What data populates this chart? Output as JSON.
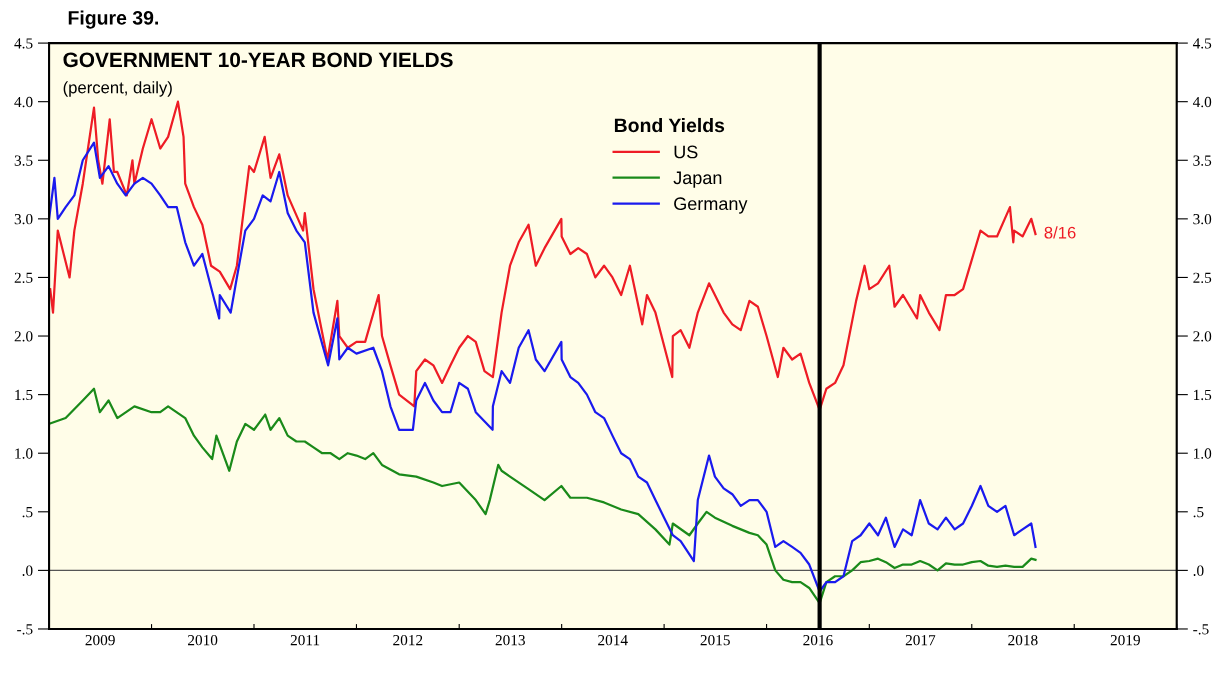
{
  "chart_data": {
    "type": "line",
    "title": "GOVERNMENT 10-YEAR BOND YIELDS",
    "subtitle": "(percent, daily)",
    "legend_title": "Bond Yields",
    "annotations": [
      "Figure 39.",
      {
        "text": "8/16",
        "x": "2018-08-16",
        "y": 2.87
      }
    ],
    "series": [
      {
        "name": "US",
        "color": "#ee1c25",
        "x": [
          "2009-01-05",
          "2009-01-15",
          "2009-02",
          "2009-03-15",
          "2009-04",
          "2009-05",
          "2009-06-10",
          "2009-06-25",
          "2009-07-10",
          "2009-08-05",
          "2009-08-20",
          "2009-09",
          "2009-10-05",
          "2009-10-25",
          "2009-11",
          "2009-12",
          "2010-01",
          "2010-02",
          "2010-03",
          "2010-04-05",
          "2010-04-25",
          "2010-05",
          "2010-06",
          "2010-07",
          "2010-08",
          "2010-09",
          "2010-10-08",
          "2010-11",
          "2010-12-15",
          "2011-01",
          "2011-02-08",
          "2011-03",
          "2011-04",
          "2011-05",
          "2011-06-25",
          "2011-07",
          "2011-08",
          "2011-09-20",
          "2011-10-25",
          "2011-11",
          "2011-12",
          "2012-01",
          "2012-02",
          "2012-03-20",
          "2012-04",
          "2012-05",
          "2012-06",
          "2012-07-25",
          "2012-08",
          "2012-09",
          "2012-10",
          "2012-11",
          "2012-12",
          "2013-01",
          "2013-02",
          "2013-03",
          "2013-04",
          "2013-05-01",
          "2013-06",
          "2013-07",
          "2013-08",
          "2013-09-05",
          "2013-10",
          "2013-11",
          "2013-12-31",
          "2014-01",
          "2014-02",
          "2014-03",
          "2014-04",
          "2014-05",
          "2014-06",
          "2014-07",
          "2014-08",
          "2014-09",
          "2014-10-15",
          "2014-11",
          "2014-12",
          "2015-01-30",
          "2015-02",
          "2015-03",
          "2015-04",
          "2015-05",
          "2015-06-10",
          "2015-07",
          "2015-08",
          "2015-09",
          "2015-10",
          "2015-11",
          "2015-12",
          "2016-01",
          "2016-02-10",
          "2016-03",
          "2016-04",
          "2016-05",
          "2016-06",
          "2016-07-08",
          "2016-08",
          "2016-09",
          "2016-10",
          "2016-11-15",
          "2016-12-15",
          "2017-01",
          "2017-02",
          "2017-03-13",
          "2017-04",
          "2017-05",
          "2017-06-20",
          "2017-07",
          "2017-08",
          "2017-09-08",
          "2017-10",
          "2017-11",
          "2017-12",
          "2018-01",
          "2018-02",
          "2018-03",
          "2018-04",
          "2018-05-17",
          "2018-05-29",
          "2018-06",
          "2018-07",
          "2018-08-01",
          "2018-08-16"
        ],
        "values": [
          2.4,
          2.2,
          2.9,
          2.5,
          2.9,
          3.3,
          3.95,
          3.5,
          3.3,
          3.85,
          3.4,
          3.4,
          3.2,
          3.5,
          3.3,
          3.6,
          3.85,
          3.6,
          3.7,
          4.0,
          3.7,
          3.3,
          3.1,
          2.95,
          2.6,
          2.55,
          2.4,
          2.6,
          3.45,
          3.4,
          3.7,
          3.35,
          3.55,
          3.2,
          2.9,
          3.05,
          2.4,
          1.8,
          2.3,
          2.0,
          1.9,
          1.95,
          1.95,
          2.35,
          2.0,
          1.75,
          1.5,
          1.4,
          1.7,
          1.8,
          1.75,
          1.6,
          1.75,
          1.9,
          2.0,
          1.95,
          1.7,
          1.65,
          2.2,
          2.6,
          2.8,
          2.95,
          2.6,
          2.75,
          3.0,
          2.85,
          2.7,
          2.75,
          2.7,
          2.5,
          2.6,
          2.5,
          2.35,
          2.6,
          2.1,
          2.35,
          2.2,
          1.65,
          2.0,
          2.05,
          1.9,
          2.2,
          2.45,
          2.35,
          2.2,
          2.1,
          2.05,
          2.3,
          2.25,
          2.0,
          1.65,
          1.9,
          1.8,
          1.85,
          1.6,
          1.37,
          1.55,
          1.6,
          1.75,
          2.3,
          2.6,
          2.4,
          2.45,
          2.6,
          2.25,
          2.35,
          2.15,
          2.35,
          2.2,
          2.05,
          2.35,
          2.35,
          2.4,
          2.65,
          2.9,
          2.85,
          2.85,
          3.1,
          2.8,
          2.9,
          2.85,
          3.0,
          2.87
        ]
      },
      {
        "name": "Japan",
        "color": "#1a8a1a",
        "x": [
          "2009-01",
          "2009-03",
          "2009-05",
          "2009-06-10",
          "2009-07",
          "2009-08",
          "2009-09",
          "2009-11",
          "2010-01",
          "2010-02",
          "2010-03",
          "2010-05",
          "2010-06",
          "2010-07",
          "2010-08-05",
          "2010-08-20",
          "2010-10-05",
          "2010-11",
          "2010-12",
          "2011-01",
          "2011-02-10",
          "2011-03",
          "2011-04",
          "2011-05",
          "2011-06",
          "2011-07",
          "2011-08",
          "2011-09",
          "2011-10",
          "2011-11",
          "2011-12",
          "2012-01",
          "2012-02",
          "2012-03",
          "2012-04",
          "2012-06",
          "2012-08",
          "2012-10",
          "2012-11",
          "2013-01",
          "2013-03",
          "2013-04-05",
          "2013-04-20",
          "2013-05-20",
          "2013-06",
          "2013-07",
          "2013-09",
          "2013-11",
          "2013-12-31",
          "2014-02",
          "2014-04",
          "2014-06",
          "2014-08",
          "2014-10",
          "2014-12",
          "2015-01-20",
          "2015-02",
          "2015-04",
          "2015-05",
          "2015-06",
          "2015-07",
          "2015-09",
          "2015-11",
          "2015-12",
          "2016-01",
          "2016-02",
          "2016-03",
          "2016-04",
          "2016-05",
          "2016-06",
          "2016-07-08",
          "2016-08",
          "2016-09",
          "2016-10",
          "2016-11",
          "2016-12",
          "2017-01",
          "2017-02",
          "2017-03",
          "2017-04",
          "2017-05",
          "2017-06",
          "2017-07",
          "2017-08",
          "2017-09",
          "2017-10",
          "2017-11",
          "2017-12",
          "2018-01",
          "2018-02",
          "2018-03",
          "2018-04",
          "2018-05",
          "2018-06",
          "2018-07",
          "2018-08-01",
          "2018-08-16"
        ],
        "values": [
          1.25,
          1.3,
          1.45,
          1.55,
          1.35,
          1.45,
          1.3,
          1.4,
          1.35,
          1.35,
          1.4,
          1.3,
          1.15,
          1.05,
          0.95,
          1.15,
          0.85,
          1.1,
          1.25,
          1.2,
          1.33,
          1.2,
          1.3,
          1.15,
          1.1,
          1.1,
          1.05,
          1.0,
          1.0,
          0.95,
          1.0,
          0.98,
          0.95,
          1.0,
          0.9,
          0.82,
          0.8,
          0.75,
          0.72,
          0.75,
          0.6,
          0.48,
          0.6,
          0.9,
          0.85,
          0.8,
          0.7,
          0.6,
          0.72,
          0.62,
          0.62,
          0.58,
          0.52,
          0.48,
          0.35,
          0.22,
          0.4,
          0.3,
          0.4,
          0.5,
          0.45,
          0.38,
          0.32,
          0.3,
          0.22,
          0.0,
          -0.08,
          -0.1,
          -0.1,
          -0.15,
          -0.28,
          -0.1,
          -0.05,
          -0.05,
          0.0,
          0.07,
          0.08,
          0.1,
          0.07,
          0.02,
          0.05,
          0.05,
          0.08,
          0.05,
          0.0,
          0.06,
          0.05,
          0.05,
          0.07,
          0.08,
          0.04,
          0.03,
          0.04,
          0.03,
          0.03,
          0.1,
          0.09
        ]
      },
      {
        "name": "Germany",
        "color": "#1a1aee",
        "x": [
          "2009-01",
          "2009-01-20",
          "2009-02",
          "2009-03",
          "2009-04",
          "2009-05",
          "2009-06-10",
          "2009-07",
          "2009-08",
          "2009-09",
          "2009-10",
          "2009-11",
          "2009-12",
          "2010-01",
          "2010-02",
          "2010-03",
          "2010-04",
          "2010-05",
          "2010-06",
          "2010-07",
          "2010-08-30",
          "2010-09",
          "2010-10-10",
          "2010-11",
          "2010-12",
          "2011-01",
          "2011-02",
          "2011-03",
          "2011-04",
          "2011-05",
          "2011-06",
          "2011-07",
          "2011-08",
          "2011-09-22",
          "2011-10-25",
          "2011-11",
          "2011-12",
          "2012-01",
          "2012-03",
          "2012-04",
          "2012-05",
          "2012-06-01",
          "2012-07-20",
          "2012-08",
          "2012-09",
          "2012-10",
          "2012-11",
          "2012-12",
          "2013-01",
          "2013-02",
          "2013-03",
          "2013-04-30",
          "2013-05",
          "2013-06",
          "2013-07",
          "2013-08",
          "2013-09-05",
          "2013-10",
          "2013-11",
          "2013-12-31",
          "2014-01",
          "2014-02",
          "2014-03",
          "2014-04",
          "2014-05",
          "2014-06",
          "2014-07",
          "2014-08",
          "2014-09",
          "2014-10",
          "2014-11",
          "2014-12",
          "2015-01",
          "2015-02",
          "2015-03",
          "2015-04-17",
          "2015-05",
          "2015-06-10",
          "2015-07",
          "2015-08",
          "2015-09",
          "2015-10",
          "2015-11",
          "2015-12",
          "2016-01",
          "2016-02",
          "2016-03",
          "2016-04",
          "2016-05",
          "2016-06",
          "2016-07-08",
          "2016-08",
          "2016-09",
          "2016-10",
          "2016-11",
          "2016-12",
          "2017-01",
          "2017-02",
          "2017-03",
          "2017-04",
          "2017-05",
          "2017-06",
          "2017-07",
          "2017-08",
          "2017-09",
          "2017-10",
          "2017-11",
          "2017-12",
          "2018-01",
          "2018-02",
          "2018-03",
          "2018-04",
          "2018-05",
          "2018-06",
          "2018-07",
          "2018-08-01",
          "2018-08-16"
        ],
        "values": [
          3.0,
          3.35,
          3.0,
          3.1,
          3.2,
          3.5,
          3.65,
          3.35,
          3.45,
          3.3,
          3.2,
          3.3,
          3.35,
          3.3,
          3.2,
          3.1,
          3.1,
          2.8,
          2.6,
          2.7,
          2.15,
          2.35,
          2.2,
          2.5,
          2.9,
          3.0,
          3.2,
          3.15,
          3.4,
          3.05,
          2.9,
          2.8,
          2.2,
          1.75,
          2.15,
          1.8,
          1.9,
          1.85,
          1.9,
          1.7,
          1.4,
          1.2,
          1.2,
          1.45,
          1.6,
          1.45,
          1.35,
          1.35,
          1.6,
          1.55,
          1.35,
          1.2,
          1.4,
          1.7,
          1.6,
          1.9,
          2.05,
          1.8,
          1.7,
          1.95,
          1.8,
          1.65,
          1.6,
          1.5,
          1.35,
          1.3,
          1.15,
          1.0,
          0.95,
          0.8,
          0.75,
          0.6,
          0.45,
          0.3,
          0.25,
          0.08,
          0.6,
          0.98,
          0.8,
          0.7,
          0.65,
          0.55,
          0.6,
          0.6,
          0.5,
          0.2,
          0.25,
          0.2,
          0.15,
          0.05,
          -0.18,
          -0.1,
          -0.1,
          -0.05,
          0.25,
          0.3,
          0.4,
          0.3,
          0.45,
          0.2,
          0.35,
          0.3,
          0.6,
          0.4,
          0.35,
          0.45,
          0.35,
          0.4,
          0.55,
          0.72,
          0.55,
          0.5,
          0.55,
          0.3,
          0.35,
          0.4,
          0.2
        ]
      }
    ],
    "xlim": [
      "2009-01-01",
      "2020-01-01"
    ],
    "xticks": [
      {
        "value": "2009-01-01",
        "label": null
      },
      {
        "value": "2009-07-02",
        "label": "2009"
      },
      {
        "value": "2010-01-01",
        "label": null
      },
      {
        "value": "2010-07-02",
        "label": "2010"
      },
      {
        "value": "2011-01-01",
        "label": null
      },
      {
        "value": "2011-07-02",
        "label": "2011"
      },
      {
        "value": "2012-01-01",
        "label": null
      },
      {
        "value": "2012-07-02",
        "label": "2012"
      },
      {
        "value": "2013-01-01",
        "label": null
      },
      {
        "value": "2013-07-02",
        "label": "2013"
      },
      {
        "value": "2014-01-01",
        "label": null
      },
      {
        "value": "2014-07-02",
        "label": "2014"
      },
      {
        "value": "2015-01-01",
        "label": null
      },
      {
        "value": "2015-07-02",
        "label": "2015"
      },
      {
        "value": "2016-01-01",
        "label": null
      },
      {
        "value": "2016-07-02",
        "label": "2016"
      },
      {
        "value": "2017-01-01",
        "label": null
      },
      {
        "value": "2017-07-02",
        "label": "2017"
      },
      {
        "value": "2018-01-01",
        "label": null
      },
      {
        "value": "2018-07-02",
        "label": "2018"
      },
      {
        "value": "2019-01-01",
        "label": null
      },
      {
        "value": "2019-07-02",
        "label": "2019"
      },
      {
        "value": "2020-01-01",
        "label": null
      }
    ],
    "ylim": [
      -0.5,
      4.5
    ],
    "yticks": [
      {
        "value": -0.5,
        "label": "-.5"
      },
      {
        "value": 0,
        "label": ".0"
      },
      {
        "value": 0.5,
        "label": ".5"
      },
      {
        "value": 1,
        "label": "1.0"
      },
      {
        "value": 1.5,
        "label": "1.5"
      },
      {
        "value": 2,
        "label": "2.0"
      },
      {
        "value": 2.5,
        "label": "2.5"
      },
      {
        "value": 3,
        "label": "3.0"
      },
      {
        "value": 3.5,
        "label": "3.5"
      },
      {
        "value": 4,
        "label": "4.0"
      },
      {
        "value": 4.5,
        "label": "4.5"
      }
    ],
    "y2lim": [
      -0.5,
      4.5
    ],
    "y2ticks": [
      {
        "value": -0.5,
        "label": "-.5"
      },
      {
        "value": 0,
        "label": ".0"
      },
      {
        "value": 0.5,
        "label": ".5"
      },
      {
        "value": 1,
        "label": "1.0"
      },
      {
        "value": 1.5,
        "label": "1.5"
      },
      {
        "value": 2,
        "label": "2.0"
      },
      {
        "value": 2.5,
        "label": "2.5"
      },
      {
        "value": 3,
        "label": "3.0"
      },
      {
        "value": 3.5,
        "label": "3.5"
      },
      {
        "value": 4,
        "label": "4.0"
      },
      {
        "value": 4.5,
        "label": "4.5"
      }
    ],
    "ref_lines": [
      {
        "axis": "y",
        "value": 0,
        "color": "#555555"
      },
      {
        "axis": "x",
        "value": "2016-07-08",
        "color": "#000000"
      }
    ],
    "legend": "top",
    "grid": false,
    "marker": "none",
    "line_style": "solid"
  }
}
